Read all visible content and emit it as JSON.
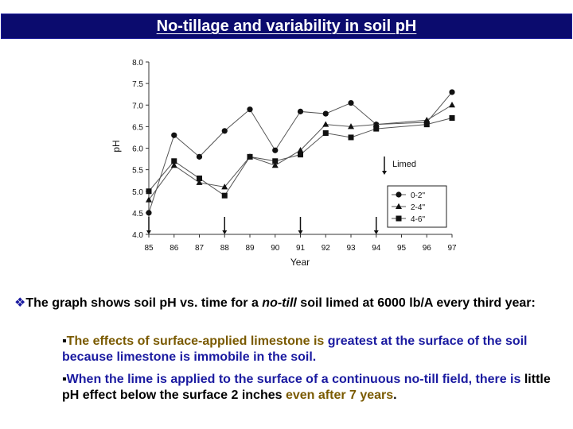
{
  "title": "No-tillage and variability in soil pH",
  "chart_data": {
    "type": "line",
    "xlabel": "Year",
    "ylabel": "pH",
    "categories": [
      "85",
      "86",
      "87",
      "88",
      "89",
      "90",
      "91",
      "92",
      "93",
      "94",
      "95",
      "96",
      "97"
    ],
    "ylim": [
      4.0,
      8.0
    ],
    "yticks": [
      "4.0",
      "4.5",
      "5.0",
      "5.5",
      "6.0",
      "6.5",
      "7.0",
      "7.5",
      "8.0"
    ],
    "series": [
      {
        "name": "0-2\"",
        "marker": "circle",
        "points": [
          [
            0,
            4.5
          ],
          [
            1,
            6.3
          ],
          [
            2,
            5.8
          ],
          [
            3,
            6.4
          ],
          [
            4,
            6.9
          ],
          [
            5,
            5.95
          ],
          [
            6,
            6.85
          ],
          [
            7,
            6.8
          ],
          [
            8,
            7.05
          ],
          [
            9,
            6.55
          ],
          [
            11,
            6.6
          ],
          [
            12,
            7.3
          ]
        ]
      },
      {
        "name": "2-4\"",
        "marker": "triangle",
        "points": [
          [
            0,
            4.8
          ],
          [
            1,
            5.6
          ],
          [
            2,
            5.2
          ],
          [
            3,
            5.1
          ],
          [
            4,
            5.8
          ],
          [
            5,
            5.6
          ],
          [
            6,
            5.95
          ],
          [
            7,
            6.55
          ],
          [
            8,
            6.5
          ],
          [
            9,
            6.55
          ],
          [
            11,
            6.65
          ],
          [
            12,
            7.0
          ]
        ]
      },
      {
        "name": "4-6\"",
        "marker": "square",
        "points": [
          [
            0,
            5.0
          ],
          [
            1,
            5.7
          ],
          [
            2,
            5.3
          ],
          [
            3,
            4.9
          ],
          [
            4,
            5.8
          ],
          [
            5,
            5.7
          ],
          [
            6,
            5.85
          ],
          [
            7,
            6.35
          ],
          [
            8,
            6.25
          ],
          [
            9,
            6.45
          ],
          [
            11,
            6.55
          ],
          [
            12,
            6.7
          ]
        ]
      }
    ],
    "limed_years": [
      "85",
      "88",
      "91",
      "94"
    ],
    "annotation": "Limed",
    "legend_position": "lower-right",
    "grid": false
  },
  "text": {
    "bullet_symbol": "v",
    "para1_a": "The graph shows soil pH vs. time for a ",
    "para1_b": "no-till",
    "para1_c": " soil limed at 6000 lb/A every third year:",
    "para2_a": "The effects of surface-applied limestone is ",
    "para2_b": "greatest at the surface of the soil because limestone is immobile in the soil.",
    "para3_a": "When the lime is applied to the surface of a continuous no-till field, there is ",
    "para3_b": "little pH effect below the surface 2 inches ",
    "para3_c": "even after 7 years",
    "para3_d": "."
  }
}
